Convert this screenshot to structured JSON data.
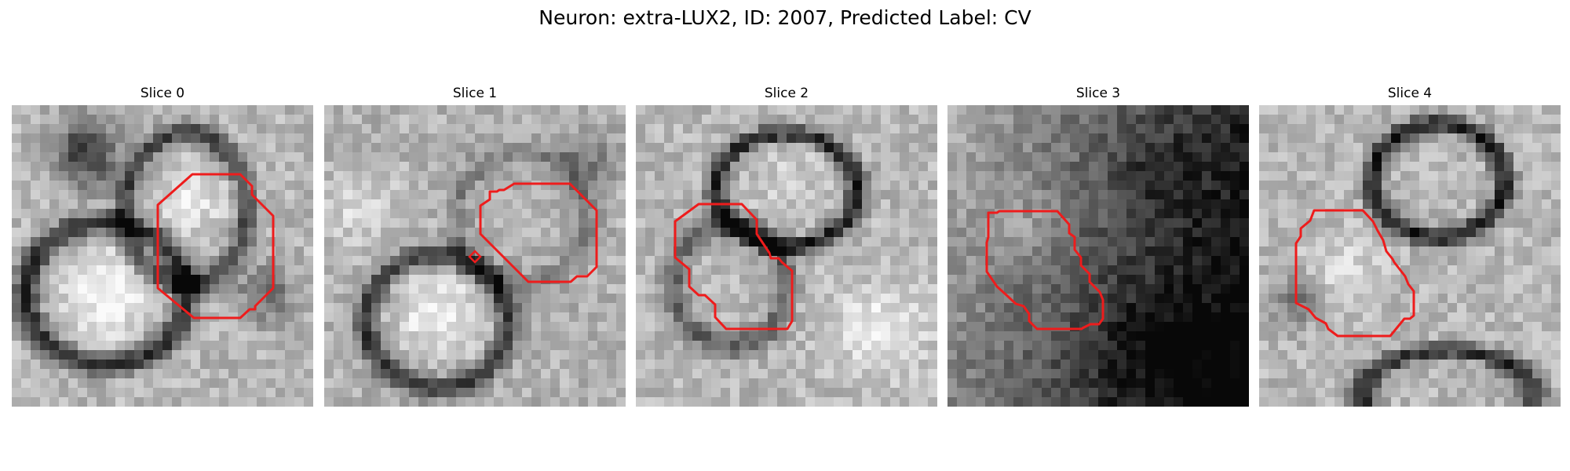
{
  "figure": {
    "suptitle": "Neuron: extra-LUX2, ID: 2007, Predicted Label: CV"
  },
  "colors": {
    "contour": "#ee1c1c",
    "background": "#ffffff",
    "colormap": "gray"
  },
  "slices": [
    {
      "title": "Slice 0"
    },
    {
      "title": "Slice 1"
    },
    {
      "title": "Slice 2"
    },
    {
      "title": "Slice 3"
    },
    {
      "title": "Slice 4"
    }
  ]
}
